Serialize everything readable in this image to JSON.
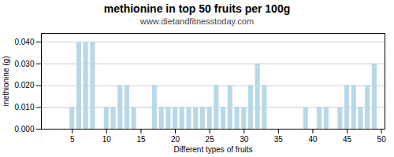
{
  "chart_data": {
    "type": "bar",
    "title": "methionine in top 50 fruits per 100g",
    "subtitle": "www.dietandfitnesstoday.com",
    "xlabel": "Different types of fruits",
    "ylabel": "methionine (g)",
    "x": [
      1,
      2,
      3,
      4,
      5,
      6,
      7,
      8,
      9,
      10,
      11,
      12,
      13,
      14,
      15,
      16,
      17,
      18,
      19,
      20,
      21,
      22,
      23,
      24,
      25,
      26,
      27,
      28,
      29,
      30,
      31,
      32,
      33,
      34,
      35,
      36,
      37,
      38,
      39,
      40,
      41,
      42,
      43,
      44,
      45,
      46,
      47,
      48,
      49,
      50
    ],
    "values": [
      0,
      0,
      0,
      0,
      0.01,
      0.04,
      0.04,
      0.04,
      0,
      0.01,
      0.01,
      0.02,
      0.02,
      0.01,
      0,
      0,
      0.02,
      0.01,
      0.01,
      0.01,
      0.01,
      0.01,
      0.01,
      0.01,
      0.01,
      0.02,
      0.01,
      0.02,
      0.01,
      0.01,
      0.02,
      0.03,
      0.02,
      0,
      0,
      0,
      0,
      0,
      0.01,
      0,
      0.01,
      0.01,
      0,
      0.01,
      0.02,
      0.02,
      0.01,
      0.02,
      0.03,
      0
    ],
    "color": "#b8d8e8",
    "xlim": [
      0.5,
      50.5
    ],
    "xticks": [
      5,
      10,
      15,
      20,
      25,
      30,
      35,
      40,
      45,
      50
    ],
    "ylim": [
      0,
      0.044
    ],
    "yticks": [
      {
        "value": 0,
        "label": "0.000"
      },
      {
        "value": 0.01,
        "label": "0.010"
      },
      {
        "value": 0.02,
        "label": "0.020"
      },
      {
        "value": 0.03,
        "label": "0.030"
      },
      {
        "value": 0.04,
        "label": "0.040"
      }
    ],
    "grid": true
  }
}
